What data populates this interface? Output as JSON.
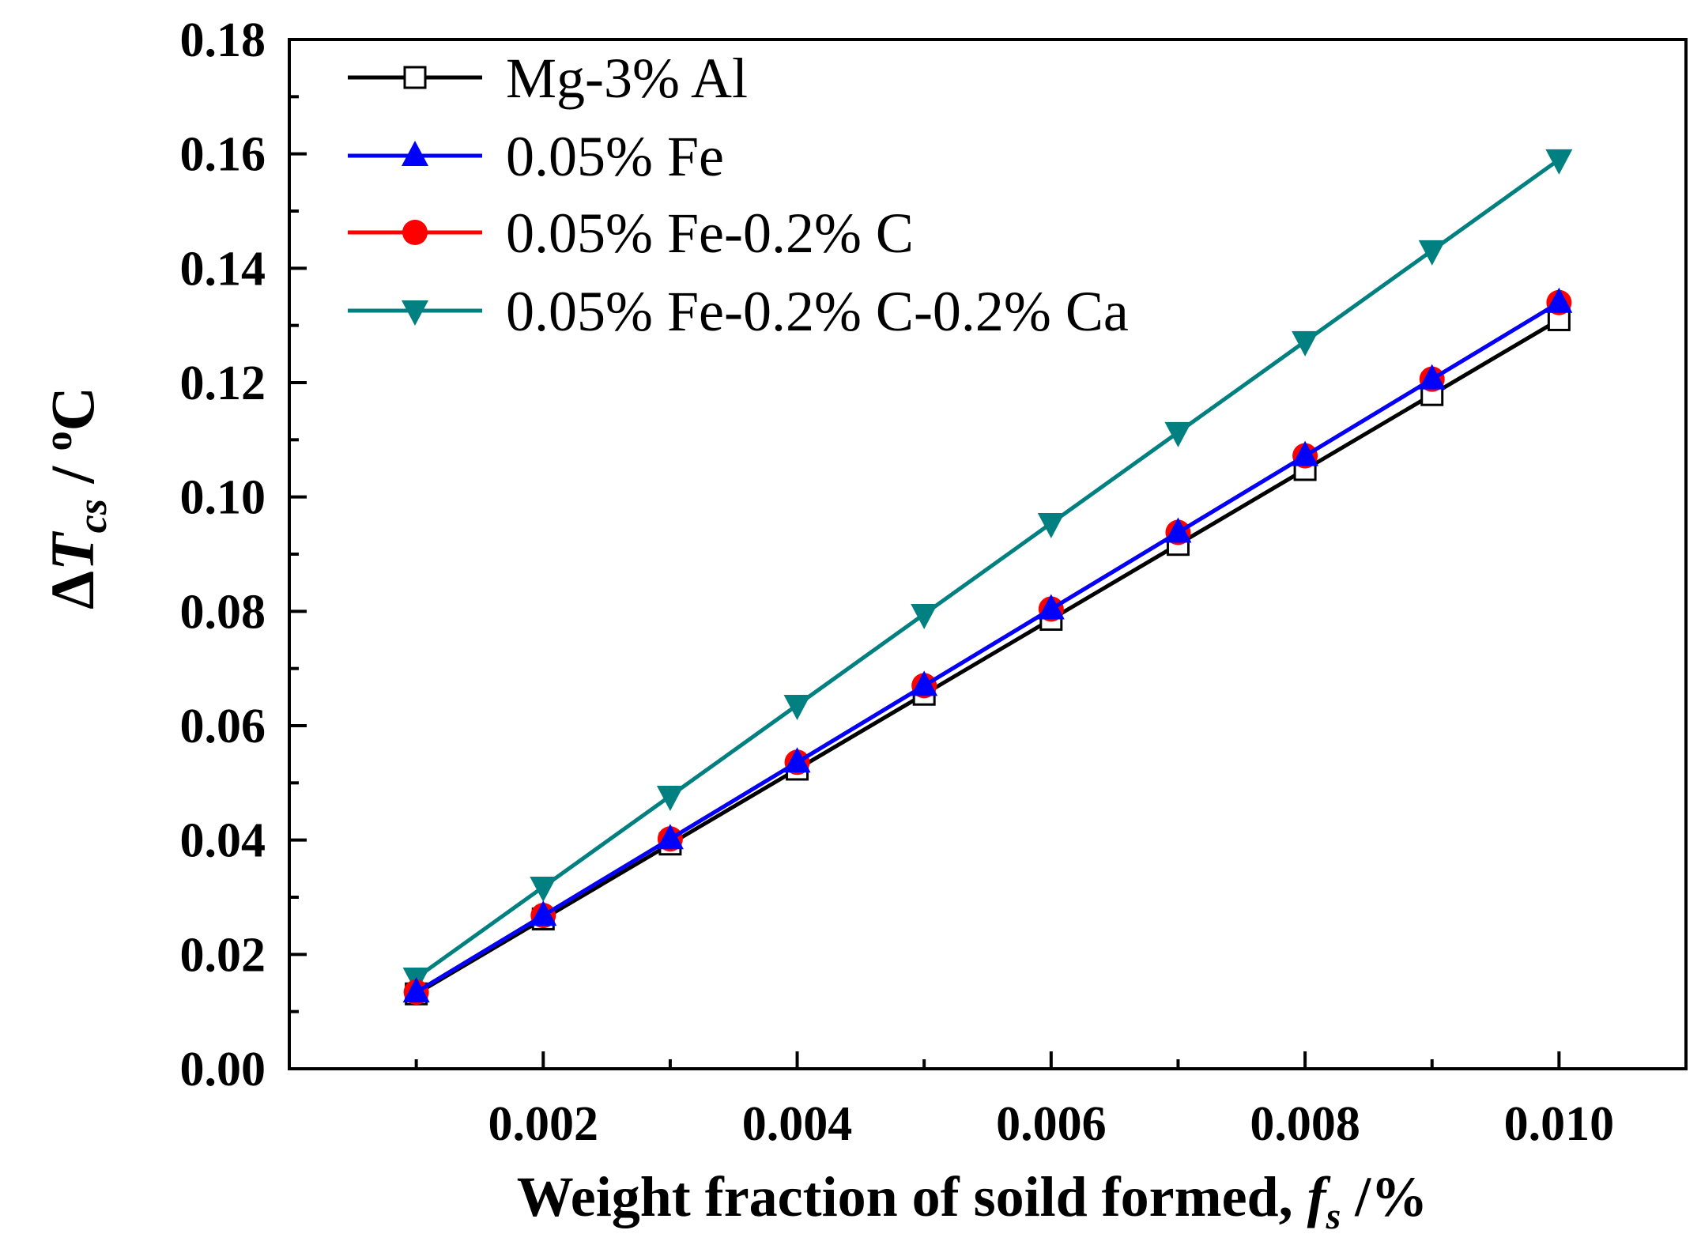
{
  "chart_data": {
    "type": "line",
    "title": "",
    "xlabel": {
      "main": "Weight fraction of soild formed, ",
      "var": "f",
      "sub": "s",
      "unit": " /%"
    },
    "ylabel": {
      "delta": "Δ",
      "var": "T",
      "sub": "cs",
      "unit": " / ",
      "deg": "o",
      "unit_end": "C"
    },
    "xlim": [
      0,
      0.011
    ],
    "ylim": [
      0,
      0.18
    ],
    "x_ticks": [
      0.002,
      0.004,
      0.006,
      0.008,
      0.01
    ],
    "x_tick_labels": [
      "0.002",
      "0.004",
      "0.006",
      "0.008",
      "0.010"
    ],
    "y_ticks": [
      0,
      0.02,
      0.04,
      0.06,
      0.08,
      0.1,
      0.12,
      0.14,
      0.16,
      0.18
    ],
    "y_tick_labels": [
      "0.00",
      "0.02",
      "0.04",
      "0.06",
      "0.08",
      "0.10",
      "0.12",
      "0.14",
      "0.16",
      "0.18"
    ],
    "legend_position": "top-left",
    "x": [
      0.001,
      0.002,
      0.003,
      0.004,
      0.005,
      0.006,
      0.007,
      0.008,
      0.009,
      0.01
    ],
    "series": [
      {
        "name": "Mg-3% Al",
        "color": "#000000",
        "marker": "open-square",
        "values": [
          0.0131,
          0.0262,
          0.0393,
          0.0524,
          0.0655,
          0.0786,
          0.0917,
          0.1048,
          0.1179,
          0.131
        ]
      },
      {
        "name": "0.05% Fe",
        "color": "#0000ff",
        "marker": "triangle-up",
        "values": [
          0.0134,
          0.0268,
          0.0402,
          0.0536,
          0.067,
          0.0804,
          0.0938,
          0.1072,
          0.1206,
          0.134
        ]
      },
      {
        "name": "0.05% Fe-0.2% C",
        "color": "#ff0000",
        "marker": "circle",
        "values": [
          0.0134,
          0.0268,
          0.0402,
          0.0536,
          0.067,
          0.0804,
          0.0938,
          0.1072,
          0.1206,
          0.134
        ]
      },
      {
        "name": "0.05% Fe-0.2% C-0.2% Ca",
        "color": "#008080",
        "marker": "triangle-down",
        "values": [
          0.0159,
          0.0318,
          0.0477,
          0.0636,
          0.0795,
          0.0954,
          0.1113,
          0.1272,
          0.1431,
          0.159
        ]
      }
    ]
  }
}
